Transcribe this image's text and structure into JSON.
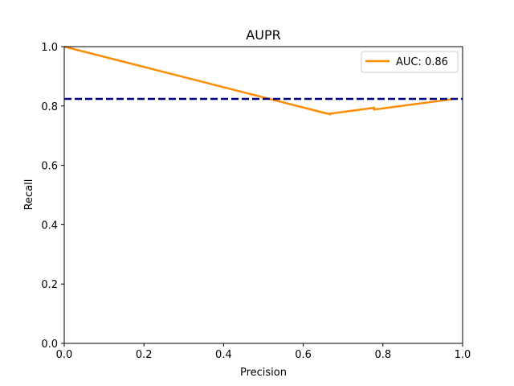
{
  "chart_data": {
    "type": "line",
    "title": "AUPR",
    "xlabel": "Precision",
    "ylabel": "Recall",
    "xlim": [
      0.0,
      1.0
    ],
    "ylim": [
      0.0,
      1.0
    ],
    "xticks": [
      "0.0",
      "0.2",
      "0.4",
      "0.6",
      "0.8",
      "1.0"
    ],
    "yticks": [
      "0.0",
      "0.2",
      "0.4",
      "0.6",
      "0.8",
      "1.0"
    ],
    "grid": false,
    "legend": {
      "placement": "top-right"
    },
    "series": [
      {
        "name": "AUC: 0.86",
        "color": "#ff8c00",
        "style": "solid",
        "x": [
          0.0,
          0.667,
          0.667,
          0.778,
          0.778,
          0.98
        ],
        "y": [
          1.0,
          0.772,
          0.774,
          0.794,
          0.788,
          0.824
        ]
      },
      {
        "color": "#000080",
        "style": "dashed",
        "x": [
          0.0,
          1.0
        ],
        "y": [
          0.824,
          0.824
        ]
      }
    ]
  }
}
